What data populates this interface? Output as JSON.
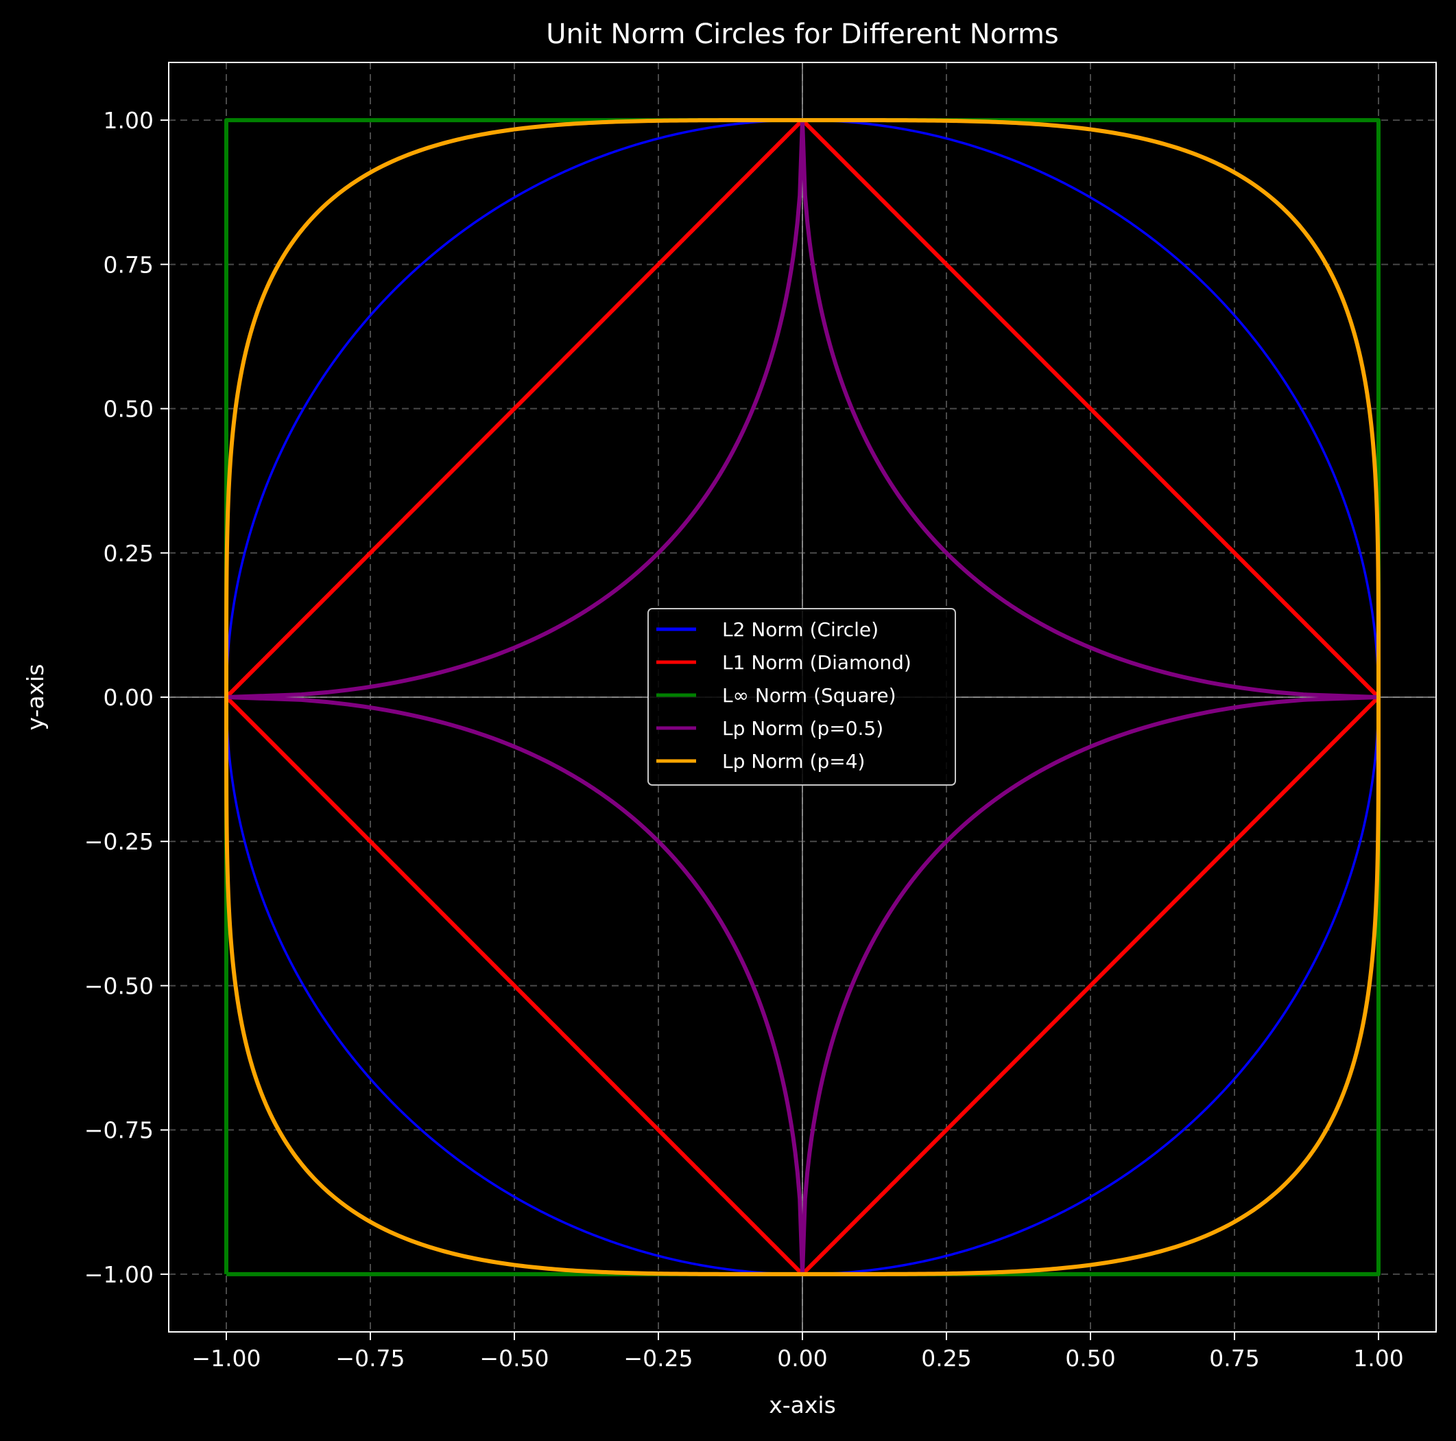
{
  "chart_data": {
    "type": "line",
    "title": "Unit Norm Circles for Different Norms",
    "xlabel": "x-axis",
    "ylabel": "y-axis",
    "xlim": [
      -1.1,
      1.1
    ],
    "ylim": [
      -1.1,
      1.1
    ],
    "xticks": [
      -1.0,
      -0.75,
      -0.5,
      -0.25,
      0.0,
      0.25,
      0.5,
      0.75,
      1.0
    ],
    "yticks": [
      -1.0,
      -0.75,
      -0.5,
      -0.25,
      0.0,
      0.25,
      0.5,
      0.75,
      1.0
    ],
    "xtick_labels": [
      "−1.00",
      "−0.75",
      "−0.50",
      "−0.25",
      "0.00",
      "0.25",
      "0.50",
      "0.75",
      "1.00"
    ],
    "ytick_labels": [
      "−1.00",
      "−0.75",
      "−0.50",
      "−0.25",
      "0.00",
      "0.25",
      "0.50",
      "0.75",
      "1.00"
    ],
    "grid": true,
    "grid_style": "dashed",
    "background": "#000000",
    "legend_position": "center",
    "series": [
      {
        "name": "L2 Norm (Circle)",
        "p": 2,
        "color": "#0000ff"
      },
      {
        "name": "L1 Norm (Diamond)",
        "p": 1,
        "color": "#ff0000"
      },
      {
        "name": "L∞ Norm (Square)",
        "p": "inf",
        "color": "#008000"
      },
      {
        "name": "Lp Norm (p=0.5)",
        "p": 0.5,
        "color": "#800080"
      },
      {
        "name": "Lp Norm (p=4)",
        "p": 4,
        "color": "#ffa500"
      }
    ]
  }
}
